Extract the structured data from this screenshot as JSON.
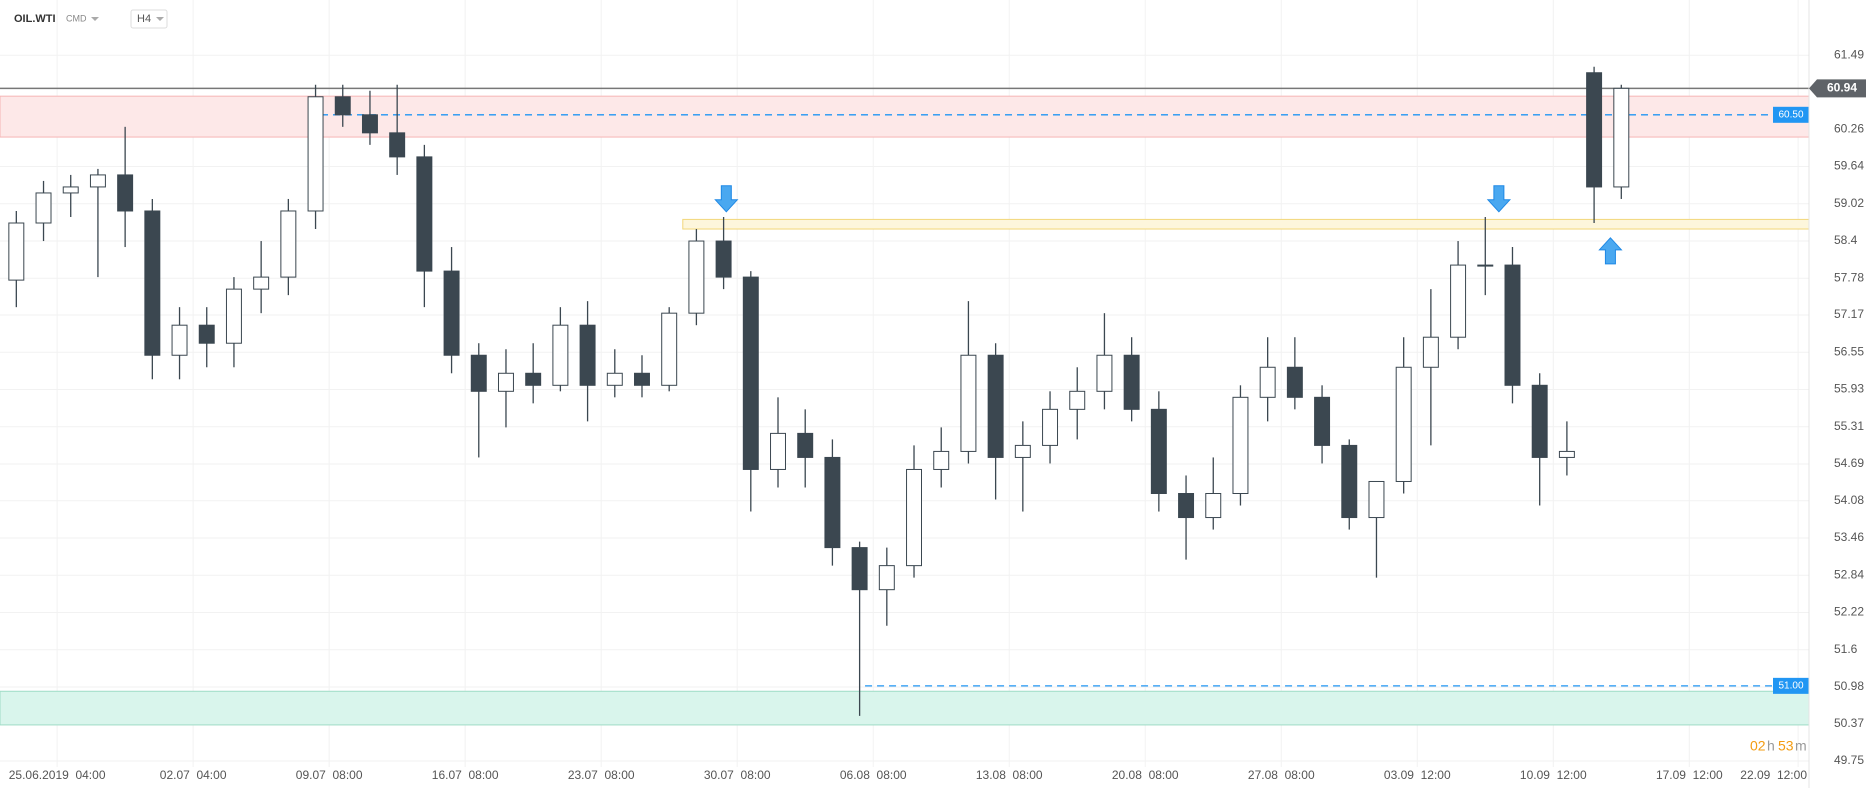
{
  "header": {
    "symbol": "OIL.WTI",
    "market": "CMD",
    "interval": "H4"
  },
  "timer": {
    "hours": "02",
    "h": "h",
    "minutes": "53",
    "m": "m"
  },
  "chart_data": {
    "type": "candlestick",
    "x": [
      0,
      1,
      2,
      3,
      4,
      5,
      6,
      7,
      8,
      9,
      10,
      11,
      12,
      13,
      14,
      15,
      16,
      17,
      18,
      19,
      20,
      21,
      22,
      23,
      24,
      25,
      26,
      27,
      28,
      29,
      30,
      31,
      32,
      33,
      34,
      35,
      36,
      37,
      38,
      39,
      40,
      41,
      42,
      43,
      44,
      45,
      46,
      47,
      48,
      49,
      50,
      51,
      52,
      53,
      54,
      55,
      56,
      57,
      58,
      59
    ],
    "open": [
      57.75,
      58.7,
      59.2,
      59.3,
      59.5,
      58.9,
      56.5,
      57.0,
      56.7,
      57.6,
      57.8,
      58.9,
      60.8,
      60.5,
      60.2,
      59.8,
      57.9,
      56.5,
      55.9,
      56.2,
      56.0,
      57.0,
      56.0,
      56.2,
      56.0,
      57.2,
      58.4,
      57.8,
      54.6,
      55.2,
      54.8,
      53.3,
      52.6,
      53.0,
      54.6,
      54.9,
      56.5,
      54.8,
      55.0,
      55.6,
      55.9,
      56.5,
      55.6,
      54.2,
      53.8,
      54.2,
      55.8,
      56.3,
      55.8,
      55.0,
      53.8,
      54.4,
      56.3,
      56.8,
      58.0,
      58.0,
      56.0,
      54.8,
      61.2,
      59.3
    ],
    "high": [
      58.9,
      59.4,
      59.5,
      59.6,
      60.3,
      59.1,
      57.3,
      57.3,
      57.8,
      58.4,
      59.1,
      61.0,
      61.0,
      60.9,
      61.0,
      60.0,
      58.3,
      56.7,
      56.6,
      56.7,
      57.3,
      57.4,
      56.6,
      56.5,
      57.3,
      58.6,
      58.8,
      57.9,
      55.8,
      55.6,
      55.1,
      53.4,
      53.3,
      55.0,
      55.3,
      57.4,
      56.7,
      55.4,
      55.9,
      56.3,
      57.2,
      56.8,
      55.9,
      54.5,
      54.8,
      56.0,
      56.8,
      56.8,
      56.0,
      55.1,
      54.4,
      56.8,
      57.6,
      58.4,
      58.8,
      58.3,
      56.2,
      55.4,
      61.3,
      61.0
    ],
    "low": [
      57.3,
      58.4,
      58.8,
      57.8,
      58.3,
      56.1,
      56.1,
      56.3,
      56.3,
      57.2,
      57.5,
      58.6,
      60.3,
      60.0,
      59.5,
      57.3,
      56.2,
      54.8,
      55.3,
      55.7,
      55.9,
      55.4,
      55.8,
      55.8,
      55.9,
      57.0,
      57.6,
      53.9,
      54.3,
      54.3,
      53.0,
      50.5,
      52.0,
      52.8,
      54.3,
      54.7,
      54.1,
      53.9,
      54.7,
      55.1,
      55.6,
      55.4,
      53.9,
      53.1,
      53.6,
      54.0,
      55.4,
      55.6,
      54.7,
      53.6,
      52.8,
      54.2,
      55.0,
      56.6,
      57.5,
      55.7,
      54.0,
      54.5,
      58.7,
      59.1
    ],
    "close": [
      58.7,
      59.2,
      59.3,
      59.5,
      58.9,
      56.5,
      57.0,
      56.7,
      57.6,
      57.8,
      58.9,
      60.8,
      60.5,
      60.2,
      59.8,
      57.9,
      56.5,
      55.9,
      56.2,
      56.0,
      57.0,
      56.0,
      56.2,
      56.0,
      57.2,
      58.4,
      57.8,
      54.6,
      55.2,
      54.8,
      53.3,
      52.6,
      53.0,
      54.6,
      54.9,
      56.5,
      54.8,
      55.0,
      55.6,
      55.9,
      56.5,
      55.6,
      54.2,
      53.8,
      54.2,
      55.8,
      56.3,
      55.8,
      55.0,
      53.8,
      54.4,
      56.3,
      56.8,
      58.0,
      58.0,
      56.0,
      54.8,
      54.9,
      59.3,
      60.94
    ],
    "up_color": "#ffffff",
    "down_color": "#3b4750",
    "wick_color": "#3b4750",
    "xlim": [
      -0.6,
      65.9
    ],
    "xticks": [
      {
        "value": 1.5,
        "label": "25.06.2019  04:00"
      },
      {
        "value": 6.5,
        "label": "02.07  04:00"
      },
      {
        "value": 11.5,
        "label": "09.07  08:00"
      },
      {
        "value": 16.5,
        "label": "16.07  08:00"
      },
      {
        "value": 21.5,
        "label": "23.07  08:00"
      },
      {
        "value": 26.5,
        "label": "30.07  08:00"
      },
      {
        "value": 31.5,
        "label": "06.08  08:00"
      },
      {
        "value": 36.5,
        "label": "13.08  08:00"
      },
      {
        "value": 41.5,
        "label": "20.08  08:00"
      },
      {
        "value": 46.5,
        "label": "27.08  08:00"
      },
      {
        "value": 51.5,
        "label": "03.09  12:00"
      },
      {
        "value": 56.5,
        "label": "10.09  12:00"
      },
      {
        "value": 61.5,
        "label": "17.09  12:00"
      },
      {
        "value": 65.5,
        "label": "22.09  12:00"
      }
    ],
    "ylim": [
      49.65,
      62.41
    ],
    "yticks": [
      61.49,
      60.26,
      59.64,
      59.02,
      58.4,
      57.78,
      57.17,
      56.55,
      55.93,
      55.31,
      54.69,
      54.08,
      53.46,
      52.84,
      52.22,
      51.6,
      50.98,
      50.37,
      49.75
    ],
    "grid": true,
    "zones": [
      {
        "from": 60.13,
        "to": 60.81,
        "color": "#fde8e8",
        "border": "#f5b5b5"
      },
      {
        "from": 50.35,
        "to": 50.91,
        "color": "#d9f5ec",
        "border": "#9fdcc6"
      },
      {
        "from": 58.6,
        "to": 58.76,
        "x_from": 24.5,
        "color": "#fdf6dc",
        "border": "#f2d77a"
      }
    ],
    "levels": [
      {
        "value": 60.5,
        "label": "60.50",
        "x_from": 11.2
      },
      {
        "value": 51.0,
        "label": "51.00",
        "x_from": 31.2
      }
    ],
    "level_color": "#2196f3",
    "current_price": {
      "value": 60.94,
      "label": "60.94"
    },
    "markers": [
      {
        "x": 26.1,
        "y": 58.82,
        "dir": "down"
      },
      {
        "x": 54.5,
        "y": 58.82,
        "dir": "down"
      },
      {
        "x": 58.6,
        "y": 58.52,
        "dir": "up"
      }
    ]
  }
}
